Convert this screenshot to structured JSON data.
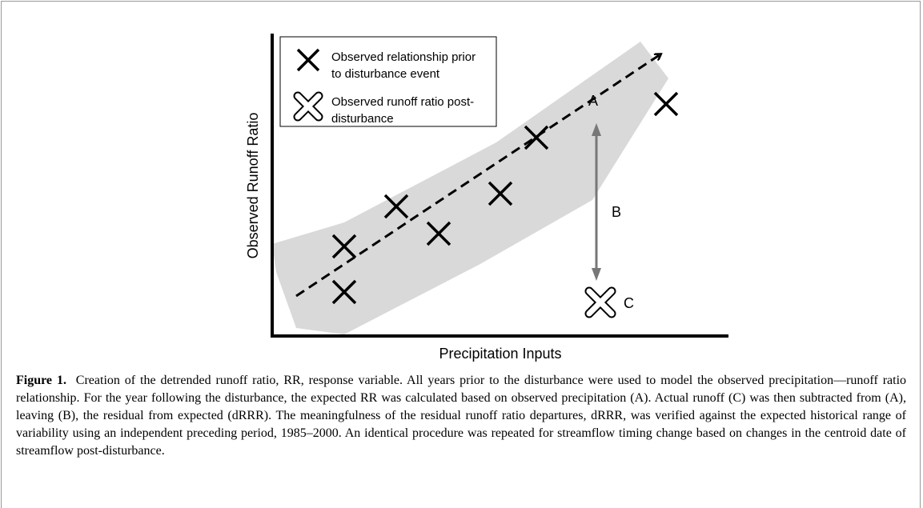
{
  "figure": {
    "y_axis_label": "Observed Runoff Ratio",
    "x_axis_label": "Precipitation Inputs",
    "legend": [
      {
        "lines": [
          "Observed relationship prior",
          "to disturbance event"
        ]
      },
      {
        "lines": [
          "Observed runoff ratio post-",
          "disturbance"
        ]
      }
    ],
    "labels": {
      "a": "A",
      "b": "B",
      "c": "C"
    }
  },
  "caption": {
    "label": "Figure 1.",
    "text": "Creation of the detrended runoff ratio, RR, response variable. All years prior to the disturbance were used to model the observed precipitation—runoff ratio relationship. For the year following the disturbance, the expected RR was calculated based on observed precipitation (A). Actual runoff (C) was then subtracted from (A), leaving (B), the residual from expected (dRRR). The meaningfulness of the residual runoff ratio departures, dRRR, was verified against the expected historical range of variability using an independent preceding period, 1985–2000. An identical procedure was repeated for streamflow timing change based on changes in the centroid date of streamflow post-disturbance."
  }
}
